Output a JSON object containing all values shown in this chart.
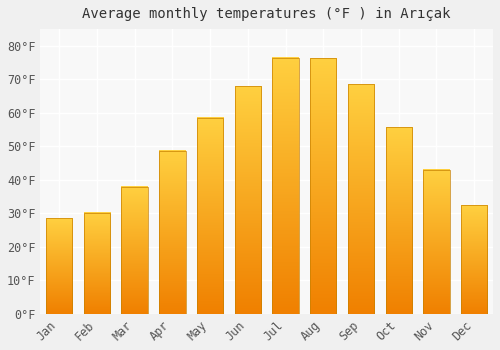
{
  "title": "Average monthly temperatures (°F ) in Arıçak",
  "months": [
    "Jan",
    "Feb",
    "Mar",
    "Apr",
    "May",
    "Jun",
    "Jul",
    "Aug",
    "Sep",
    "Oct",
    "Nov",
    "Dec"
  ],
  "values": [
    28.5,
    30.2,
    38.0,
    48.7,
    58.6,
    68.0,
    76.5,
    76.3,
    68.5,
    55.8,
    43.0,
    32.5
  ],
  "bar_color": "#FFA500",
  "bar_color_top": "#FFD040",
  "bar_color_bottom": "#F08000",
  "bar_edge_color": "#C88000",
  "background_color": "#f0f0f0",
  "plot_bg_color": "#f8f8f8",
  "grid_color": "#ffffff",
  "ylim": [
    0,
    85
  ],
  "yticks": [
    0,
    10,
    20,
    30,
    40,
    50,
    60,
    70,
    80
  ],
  "ytick_labels": [
    "0°F",
    "10°F",
    "20°F",
    "30°F",
    "40°F",
    "50°F",
    "60°F",
    "70°F",
    "80°F"
  ],
  "title_fontsize": 10,
  "tick_fontsize": 8.5,
  "font_family": "monospace"
}
